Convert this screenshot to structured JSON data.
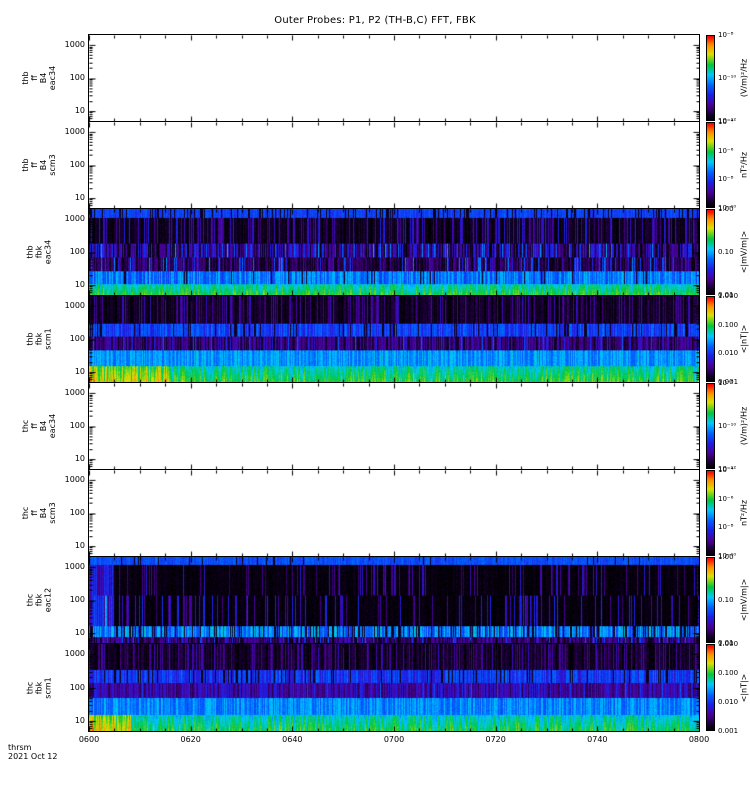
{
  "chart_data": {
    "type": "heatmap",
    "title": "Outer Probes: P1, P2 (TH-B,C) FFT, FBK",
    "footer": {
      "program": "thrsm",
      "date": "2021 Oct 12"
    },
    "background_color": "#ffffff",
    "axis_color": "#000000",
    "x_axis": {
      "label_type": "time",
      "tick_labels": [
        "0600",
        "0620",
        "0640",
        "0700",
        "0720",
        "0740",
        "0800"
      ],
      "major_tick_minutes": 20,
      "minor_tick_minutes": 5
    },
    "y_axis": {
      "scale": "log",
      "range": [
        5,
        2000
      ]
    },
    "colormap": {
      "name": "rainbow",
      "stops": [
        [
          0,
          "#000000"
        ],
        [
          0.07,
          "#16002e"
        ],
        [
          0.18,
          "#4b0096"
        ],
        [
          0.3,
          "#1e1ee6"
        ],
        [
          0.42,
          "#0064ff"
        ],
        [
          0.54,
          "#00c8ff"
        ],
        [
          0.66,
          "#00c83c"
        ],
        [
          0.79,
          "#dce100"
        ],
        [
          0.9,
          "#ff8c00"
        ],
        [
          1,
          "#ff0000"
        ]
      ]
    },
    "panels": [
      {
        "id": "thb-ff-B4-eac34",
        "label_lines": [
          "thb",
          "ff",
          "B4",
          "eac34"
        ],
        "y_tick_labels": [
          "1000",
          "100",
          "10"
        ],
        "colorbar": {
          "unit": "(V/m)²/Hz",
          "tick_labels": [
            "10⁻⁸",
            "10⁻¹⁰",
            "10⁻¹²"
          ]
        },
        "has_data": false,
        "bands": []
      },
      {
        "id": "thb-ff-B4-scm3",
        "label_lines": [
          "thb",
          "ff",
          "B4",
          "scm3"
        ],
        "y_tick_labels": [
          "1000",
          "100",
          "10"
        ],
        "colorbar": {
          "unit": "nT²/Hz",
          "tick_labels": [
            "10⁻⁴",
            "10⁻⁶",
            "10⁻⁸",
            "10⁻¹⁰"
          ]
        },
        "has_data": false,
        "bands": []
      },
      {
        "id": "thb-fbk-eac34",
        "label_lines": [
          "thb",
          "fbk",
          "eac34"
        ],
        "y_tick_labels": [
          "1000",
          "100",
          "10"
        ],
        "colorbar": {
          "unit": "<|mV/m|>",
          "tick_labels": [
            "1.00",
            "0.10",
            "0.01"
          ]
        },
        "has_data": true,
        "bands": [
          {
            "y0": 0,
            "y1": 0.1,
            "base": 0.36,
            "amp": 0.04,
            "gap_p": 0.18
          },
          {
            "y0": 0.1,
            "y1": 0.4,
            "base": 0.04,
            "amp": 0.04,
            "spike_p": 0.3,
            "spike_v": 0.22
          },
          {
            "y0": 0.4,
            "y1": 0.56,
            "base": 0.2,
            "amp": 0.14,
            "spike_p": 0.12,
            "spike_v": 0.38,
            "gap_p": 0.15
          },
          {
            "y0": 0.56,
            "y1": 0.72,
            "base": 0.1,
            "amp": 0.08,
            "spike_p": 0.18,
            "spike_v": 0.34
          },
          {
            "y0": 0.72,
            "y1": 0.87,
            "base": 0.44,
            "amp": 0.1,
            "gap_p": 0.06
          },
          {
            "y0": 0.87,
            "y1": 1,
            "base": 0.58,
            "amp": 0.08,
            "row_grad": 0.1
          }
        ]
      },
      {
        "id": "thb-fbk-scm1",
        "label_lines": [
          "thb",
          "fbk",
          "scm1"
        ],
        "y_tick_labels": [
          "1000",
          "100",
          "10"
        ],
        "colorbar": {
          "unit": "<|nT|>",
          "tick_labels": [
            "1.000",
            "0.100",
            "0.010",
            "0.001"
          ]
        },
        "has_data": true,
        "bands": [
          {
            "y0": 0,
            "y1": 0.32,
            "base": 0.05,
            "amp": 0.05,
            "spike_p": 0.28,
            "spike_v": 0.18
          },
          {
            "y0": 0.32,
            "y1": 0.47,
            "base": 0.36,
            "amp": 0.08,
            "gap_p": 0.12
          },
          {
            "y0": 0.47,
            "y1": 0.63,
            "base": 0.14,
            "amp": 0.1,
            "spike_p": 0.12,
            "spike_v": 0.3
          },
          {
            "y0": 0.63,
            "y1": 0.82,
            "base": 0.48,
            "amp": 0.08
          },
          {
            "y0": 0.82,
            "y1": 1,
            "base": 0.58,
            "amp": 0.09,
            "row_grad": 0.1,
            "left_frac": 0.13,
            "left_boost": 0.16
          }
        ]
      },
      {
        "id": "thc-ff-B4-eac34",
        "label_lines": [
          "thc",
          "ff",
          "B4",
          "eac34"
        ],
        "y_tick_labels": [
          "1000",
          "100",
          "10"
        ],
        "colorbar": {
          "unit": "(V/m)²/Hz",
          "tick_labels": [
            "10⁻⁸",
            "10⁻¹⁰",
            "10⁻¹²"
          ]
        },
        "has_data": false,
        "bands": []
      },
      {
        "id": "thc-ff-B4-scm3",
        "label_lines": [
          "thc",
          "ff",
          "B4",
          "scm3"
        ],
        "y_tick_labels": [
          "1000",
          "100",
          "10"
        ],
        "colorbar": {
          "unit": "nT²/Hz",
          "tick_labels": [
            "10⁻⁴",
            "10⁻⁶",
            "10⁻⁸",
            "10⁻¹⁰"
          ]
        },
        "has_data": false,
        "bands": []
      },
      {
        "id": "thc-fbk-eac12",
        "label_lines": [
          "thc",
          "fbk",
          "eac12"
        ],
        "y_tick_labels": [
          "1000",
          "100",
          "10"
        ],
        "colorbar": {
          "unit": "<|mV/m|>",
          "tick_labels": [
            "1.00",
            "0.10",
            "0.01"
          ]
        },
        "has_data": true,
        "bands": [
          {
            "y0": 0,
            "y1": 0.09,
            "base": 0.38,
            "amp": 0.04,
            "gap_p": 0.04
          },
          {
            "y0": 0.09,
            "y1": 0.45,
            "base": 0.02,
            "amp": 0.02,
            "spike_p": 0.15,
            "spike_v": 0.2,
            "left_frac": 0.04,
            "left_boost": 0.3
          },
          {
            "y0": 0.45,
            "y1": 0.8,
            "base": 0.02,
            "amp": 0.02,
            "spike_p": 0.2,
            "spike_v": 0.24,
            "left_frac": 0.04,
            "left_boost": 0.3
          },
          {
            "y0": 0.8,
            "y1": 0.93,
            "base": 0.46,
            "amp": 0.12,
            "gap_p": 0.22
          },
          {
            "y0": 0.93,
            "y1": 1,
            "base": 0.12,
            "amp": 0.1,
            "spike_p": 0.2,
            "spike_v": 0.3
          }
        ]
      },
      {
        "id": "thc-fbk-scm1",
        "label_lines": [
          "thc",
          "fbk",
          "scm1"
        ],
        "y_tick_labels": [
          "1000",
          "100",
          "10"
        ],
        "colorbar": {
          "unit": "<|nT|>",
          "tick_labels": [
            "1.000",
            "0.100",
            "0.010",
            "0.001"
          ]
        },
        "has_data": true,
        "bands": [
          {
            "y0": 0,
            "y1": 0.3,
            "base": 0.05,
            "amp": 0.05,
            "spike_p": 0.3,
            "spike_v": 0.17
          },
          {
            "y0": 0.3,
            "y1": 0.45,
            "base": 0.34,
            "amp": 0.09,
            "gap_p": 0.15
          },
          {
            "y0": 0.45,
            "y1": 0.62,
            "base": 0.2,
            "amp": 0.1,
            "spike_p": 0.1,
            "spike_v": 0.3
          },
          {
            "y0": 0.62,
            "y1": 0.82,
            "base": 0.46,
            "amp": 0.08
          },
          {
            "y0": 0.82,
            "y1": 1,
            "base": 0.56,
            "amp": 0.09,
            "row_grad": 0.1,
            "left_frac": 0.07,
            "left_boost": 0.22
          }
        ]
      }
    ]
  }
}
